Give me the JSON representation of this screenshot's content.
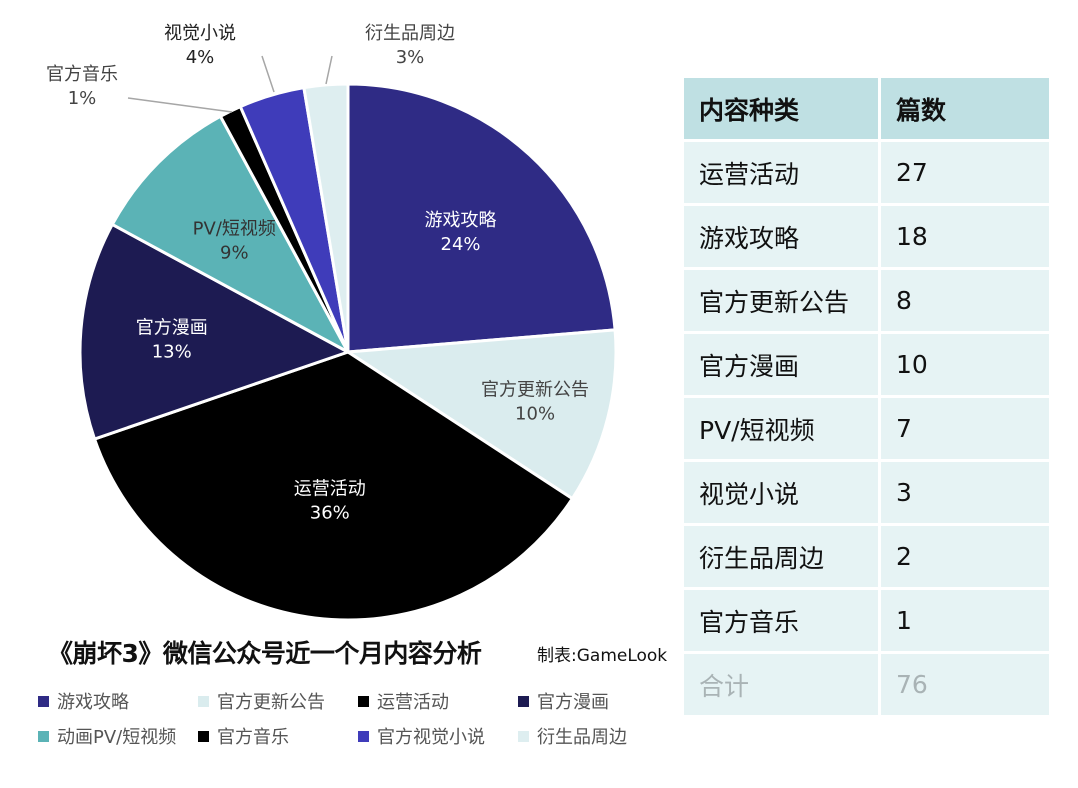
{
  "chart_data": {
    "type": "pie",
    "title": "《崩坏3》微信公众号近一个月内容分析",
    "credit": "制表:GameLook",
    "slices": [
      {
        "label": "游戏攻略",
        "percent": "24%",
        "value": 18,
        "color": "#2f2b85",
        "text_color": "#ffffff"
      },
      {
        "label": "官方更新公告",
        "percent": "10%",
        "value": 8,
        "color": "#daecee",
        "text_color": "#444444"
      },
      {
        "label": "运营活动",
        "percent": "36%",
        "value": 27,
        "color": "#000000",
        "text_color": "#ffffff"
      },
      {
        "label": "官方漫画",
        "percent": "13%",
        "value": 10,
        "color": "#1d1b52",
        "text_color": "#ffffff"
      },
      {
        "label": "PV/短视频",
        "percent": "9%",
        "value": 7,
        "color": "#5bb3b6",
        "text_color": "#333333"
      },
      {
        "label": "官方音乐",
        "percent": "1%",
        "value": 1,
        "color": "#000000",
        "text_color": "#444444"
      },
      {
        "label": "视觉小说",
        "percent": "4%",
        "value": 3,
        "color": "#3f3cba",
        "text_color": "#222222"
      },
      {
        "label": "衍生品周边",
        "percent": "3%",
        "value": 2,
        "color": "#deeef0",
        "text_color": "#444444"
      }
    ],
    "legend": [
      {
        "label": "游戏攻略",
        "color": "#2f2b85"
      },
      {
        "label": "官方更新公告",
        "color": "#daecee"
      },
      {
        "label": "运营活动",
        "color": "#000000"
      },
      {
        "label": "官方漫画",
        "color": "#1d1b52"
      },
      {
        "label": "动画PV/短视频",
        "color": "#5bb3b6"
      },
      {
        "label": "官方音乐",
        "color": "#000000"
      },
      {
        "label": "官方视觉小说",
        "color": "#3f3cba"
      },
      {
        "label": "衍生品周边",
        "color": "#deeef0"
      }
    ]
  },
  "table": {
    "headers": [
      "内容种类",
      "篇数"
    ],
    "rows": [
      [
        "运营活动",
        "27"
      ],
      [
        "游戏攻略",
        "18"
      ],
      [
        "官方更新公告",
        "8"
      ],
      [
        "官方漫画",
        "10"
      ],
      [
        "PV/短视频",
        "7"
      ],
      [
        "视觉小说",
        "3"
      ],
      [
        "衍生品周边",
        "2"
      ],
      [
        "官方音乐",
        "1"
      ]
    ],
    "total": [
      "合计",
      "76"
    ]
  }
}
